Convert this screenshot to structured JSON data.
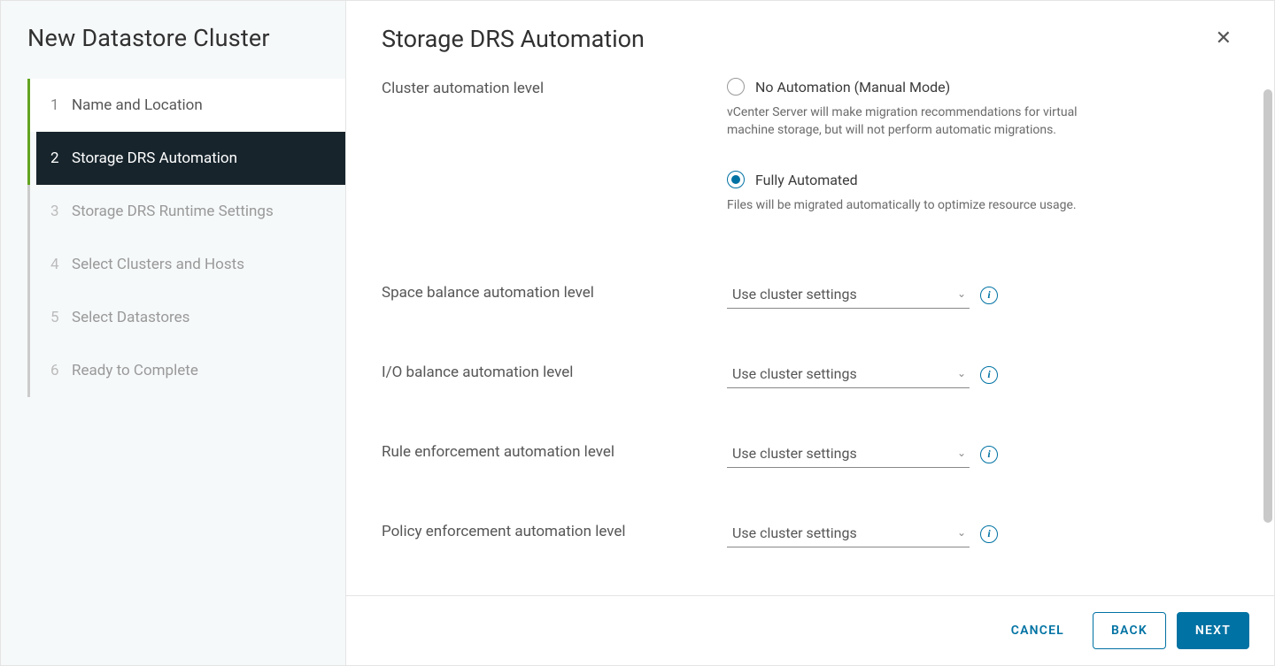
{
  "dialog": {
    "title": "New Datastore Cluster"
  },
  "steps": [
    {
      "number": "1",
      "label": "Name and Location",
      "state": "completed"
    },
    {
      "number": "2",
      "label": "Storage DRS Automation",
      "state": "active"
    },
    {
      "number": "3",
      "label": "Storage DRS Runtime Settings",
      "state": "future"
    },
    {
      "number": "4",
      "label": "Select Clusters and Hosts",
      "state": "future"
    },
    {
      "number": "5",
      "label": "Select Datastores",
      "state": "future"
    },
    {
      "number": "6",
      "label": "Ready to Complete",
      "state": "future"
    }
  ],
  "page": {
    "title": "Storage DRS Automation",
    "cluster_automation": {
      "label": "Cluster automation level",
      "options": [
        {
          "label": "No Automation (Manual Mode)",
          "description": "vCenter Server will make migration recommendations for virtual machine storage, but will not perform automatic migrations.",
          "selected": false
        },
        {
          "label": "Fully Automated",
          "description": "Files will be migrated automatically to optimize resource usage.",
          "selected": true
        }
      ]
    },
    "overrides": [
      {
        "label": "Space balance automation level",
        "value": "Use cluster settings"
      },
      {
        "label": "I/O balance automation level",
        "value": "Use cluster settings"
      },
      {
        "label": "Rule enforcement automation level",
        "value": "Use cluster settings"
      },
      {
        "label": "Policy enforcement automation level",
        "value": "Use cluster settings"
      }
    ]
  },
  "footer": {
    "cancel": "CANCEL",
    "back": "BACK",
    "next": "NEXT"
  },
  "colors": {
    "accent": "#0072a3",
    "sidebar_bg": "#f6f9fa",
    "active_step_bg": "#17242c",
    "completed_rail": "#62a420",
    "future_rail": "#cccccc",
    "text_primary": "#313131",
    "text_secondary": "#565656",
    "text_muted": "#6a6a6a",
    "border": "#e4e4e4"
  },
  "typography": {
    "title_fontsize_pt": 20,
    "body_fontsize_pt": 12,
    "desc_fontsize_pt": 10
  }
}
